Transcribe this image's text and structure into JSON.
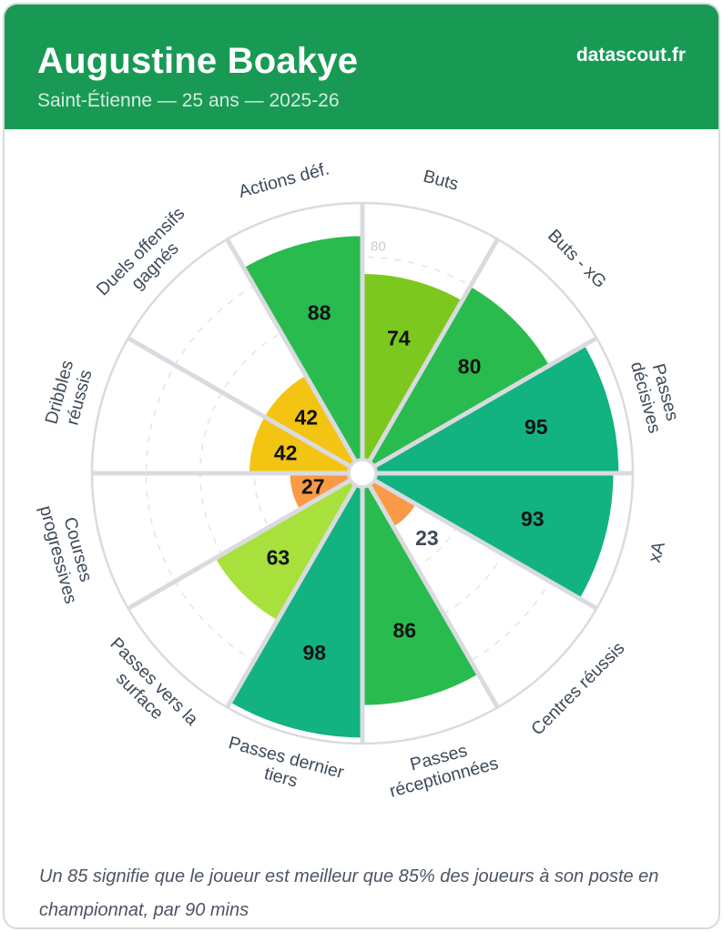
{
  "header": {
    "title": "Augustine Boakye",
    "subtitle": "Saint-Étienne — 25 ans — 2025-26",
    "brand": "datascout.fr",
    "bg_color": "#189a55"
  },
  "chart_data": {
    "type": "polar-bar-pizza",
    "title": "",
    "scale_min": 0,
    "scale_max": 100,
    "grid_rings": [
      20,
      40,
      60,
      80
    ],
    "visible_ring_label": "80",
    "legend_position": "none",
    "categories": [
      "Buts",
      "Buts - xG",
      "Passes décisives",
      "xA",
      "Centres réussis",
      "Passes réceptionnées",
      "Passes dernier tiers",
      "Passes vers la surface",
      "Courses progressives",
      "Dribbles réussis",
      "Duels offensifs gagnés",
      "Actions déf."
    ],
    "values": [
      74,
      80,
      95,
      93,
      23,
      86,
      98,
      63,
      27,
      42,
      42,
      88
    ],
    "slice_colors": [
      "#7dc81e",
      "#2abb4f",
      "#12b380",
      "#12b380",
      "#f99a46",
      "#2abb4f",
      "#12b380",
      "#a8e03c",
      "#f99a46",
      "#f4c413",
      "#f4c413",
      "#2abb4f"
    ],
    "label_lines": [
      [
        "Buts"
      ],
      [
        "Buts - xG"
      ],
      [
        "Passes",
        "décisives"
      ],
      [
        "xA"
      ],
      [
        "Centres réussis"
      ],
      [
        "Passes",
        "réceptionnées"
      ],
      [
        "Passes dernier",
        "tiers"
      ],
      [
        "Passes vers la",
        "surface"
      ],
      [
        "Courses",
        "progressives"
      ],
      [
        "Dribbles",
        "réussis"
      ],
      [
        "Duels offensifs",
        "gagnés"
      ],
      [
        "Actions déf."
      ]
    ],
    "value_label_outside": [
      false,
      false,
      false,
      false,
      true,
      false,
      false,
      false,
      false,
      false,
      false,
      false
    ],
    "style": {
      "grid_color": "#e4e6ea",
      "spoke_color": "#d9dbe0",
      "ring_color": "#d9dbe0",
      "ring_label_color": "#c7cbd3",
      "category_label_color": "#3e4a59",
      "value_label_color": "#101214",
      "value_label_outside_color": "#3e4a59",
      "hub_fill": "#ffffff"
    }
  },
  "footer": {
    "note": "Un 85 signifie que le joueur est meilleur que 85% des joueurs à son poste en championnat, par 90 mins"
  }
}
